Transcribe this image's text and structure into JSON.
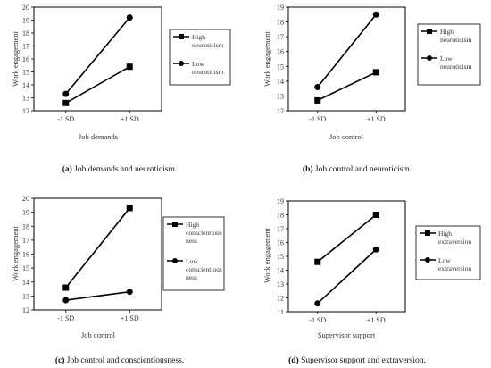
{
  "chart_data": [
    {
      "type": "line",
      "categories": [
        "-1 SD",
        "+1 SD"
      ],
      "ylabel": "Work engagement",
      "xlabel": "Job demands",
      "ylim": [
        12,
        20
      ],
      "yticks": [
        12,
        13,
        14,
        15,
        16,
        17,
        18,
        19,
        20
      ],
      "series": [
        {
          "name": "High neuroticism",
          "legend_lines": [
            "High",
            "neuroticism"
          ],
          "marker": "square",
          "values": [
            12.6,
            15.4
          ]
        },
        {
          "name": "Low neuroticism",
          "legend_lines": [
            "Low",
            "neuroticism"
          ],
          "marker": "circle",
          "values": [
            13.3,
            19.2
          ]
        }
      ],
      "caption": {
        "letter": "(a)",
        "text": " Job demands and neuroticism."
      }
    },
    {
      "type": "line",
      "categories": [
        "-1 SD",
        "+1 SD"
      ],
      "ylabel": "Work engagement",
      "xlabel": "Job control",
      "ylim": [
        12,
        19
      ],
      "yticks": [
        12,
        13,
        14,
        15,
        16,
        17,
        18,
        19
      ],
      "series": [
        {
          "name": "High neuroticism",
          "legend_lines": [
            "High",
            "neuroticism"
          ],
          "marker": "square",
          "values": [
            12.7,
            14.6
          ]
        },
        {
          "name": "Low neuroticism",
          "legend_lines": [
            "Low",
            "neuroticism"
          ],
          "marker": "circle",
          "values": [
            13.6,
            18.5
          ]
        }
      ],
      "caption": {
        "letter": "(b)",
        "text": " Job control and neuroticism."
      }
    },
    {
      "type": "line",
      "categories": [
        "-1 SD",
        "+1 SD"
      ],
      "ylabel": "Work engagement",
      "xlabel": "Job control",
      "ylim": [
        12,
        20
      ],
      "yticks": [
        12,
        13,
        14,
        15,
        16,
        17,
        18,
        19,
        20
      ],
      "series": [
        {
          "name": "High conscientiousness",
          "legend_lines": [
            "High",
            "conscientious",
            "ness"
          ],
          "marker": "square",
          "values": [
            13.6,
            19.3
          ]
        },
        {
          "name": "Low conscientiousness",
          "legend_lines": [
            "Low",
            "conscientious",
            "ness"
          ],
          "marker": "circle",
          "values": [
            12.7,
            13.3
          ]
        }
      ],
      "caption": {
        "letter": "(c)",
        "text": " Job control and conscientiousness."
      }
    },
    {
      "type": "line",
      "categories": [
        "-1 SD",
        "+1 SD"
      ],
      "ylabel": "Work engagement",
      "xlabel": "Supervisor support",
      "ylim": [
        11,
        19
      ],
      "yticks": [
        11,
        12,
        13,
        14,
        15,
        16,
        17,
        18,
        19
      ],
      "series": [
        {
          "name": "High extraversion",
          "legend_lines": [
            "High",
            "extraversion"
          ],
          "marker": "square",
          "values": [
            14.6,
            18.0
          ]
        },
        {
          "name": "Low extraversion",
          "legend_lines": [
            "Low",
            "extraversion"
          ],
          "marker": "circle",
          "values": [
            11.6,
            15.5
          ]
        }
      ],
      "caption": {
        "letter": "(d)",
        "text": " Supervisor support and extraversion."
      }
    }
  ]
}
